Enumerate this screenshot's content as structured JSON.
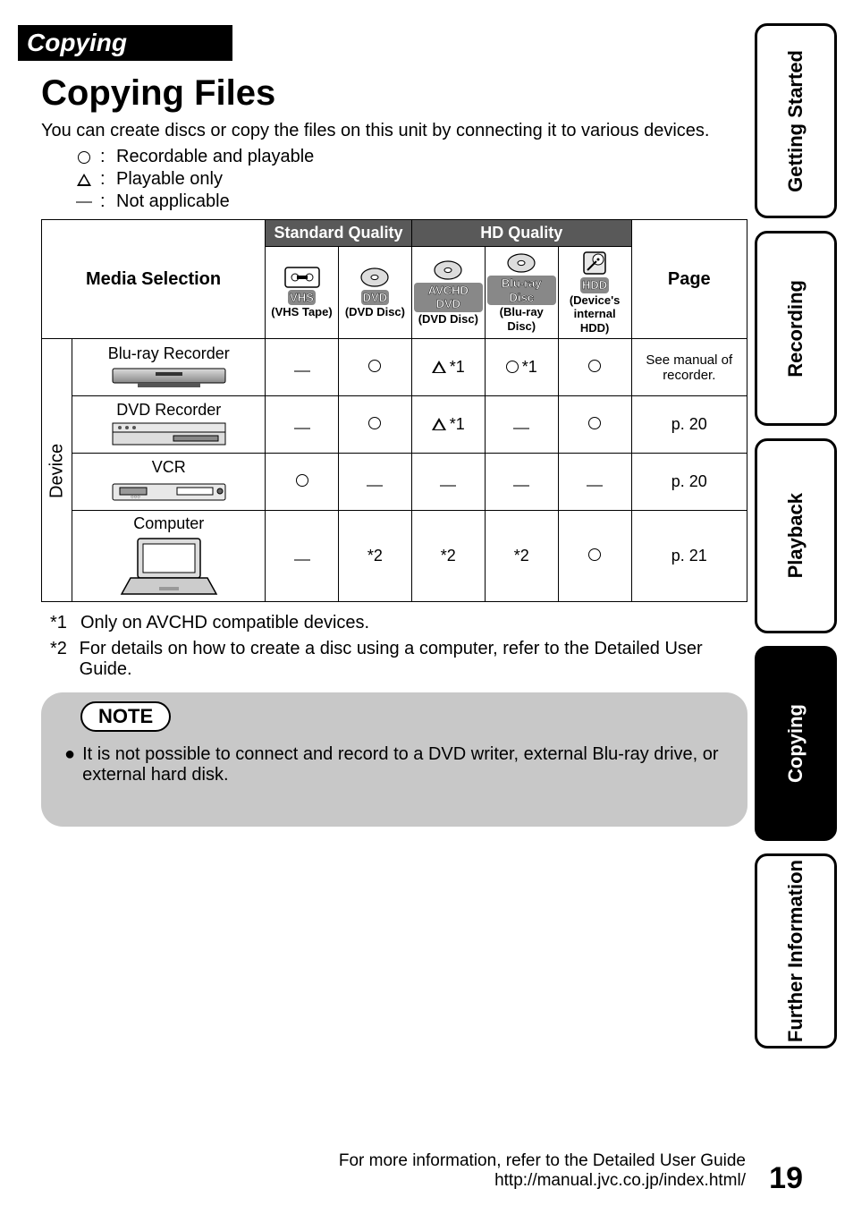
{
  "section": "Copying",
  "title": "Copying Files",
  "intro": "You can create discs or copy the files on this unit by connecting it to various devices.",
  "legend": [
    {
      "symbol": "circle",
      "text": "Recordable and playable"
    },
    {
      "symbol": "triangle",
      "text": "Playable only"
    },
    {
      "symbol": "dash",
      "text": "Not applicable"
    }
  ],
  "table": {
    "corner_label": "Media Selection",
    "quality_groups": [
      {
        "label": "Standard Quality",
        "span": 2
      },
      {
        "label": "HD Quality",
        "span": 3
      }
    ],
    "page_label": "Page",
    "media_columns": [
      {
        "badge": "VHS",
        "sub": "(VHS Tape)",
        "icon": "cassette"
      },
      {
        "badge": "DVD",
        "sub": "(DVD Disc)",
        "icon": "disc"
      },
      {
        "badge": "AVCHD DVD",
        "sub": "(DVD Disc)",
        "icon": "disc"
      },
      {
        "badge": "Blu-ray Disc",
        "sub": "(Blu-ray Disc)",
        "icon": "disc"
      },
      {
        "badge": "HDD",
        "sub": "(Device's internal HDD)",
        "icon": "hdd"
      }
    ],
    "device_label": "Device",
    "rows": [
      {
        "device": "Blu-ray Recorder",
        "device_icon": "bluray-recorder",
        "cells": [
          "—",
          "○",
          "△ *1",
          "○ *1",
          "○"
        ],
        "page": "See manual of recorder.",
        "page_small": true
      },
      {
        "device": "DVD Recorder",
        "device_icon": "dvd-recorder",
        "cells": [
          "—",
          "○",
          "△ *1",
          "—",
          "○"
        ],
        "page": "p. 20",
        "page_small": false
      },
      {
        "device": "VCR",
        "device_icon": "vcr",
        "cells": [
          "○",
          "—",
          "—",
          "—",
          "—"
        ],
        "page": "p. 20",
        "page_small": false
      },
      {
        "device": "Computer",
        "device_icon": "laptop",
        "cells": [
          "—",
          "*2",
          "*2",
          "*2",
          "○"
        ],
        "page": "p. 21",
        "page_small": false
      }
    ]
  },
  "footnotes": [
    {
      "num": "*1",
      "text": "Only on AVCHD compatible devices."
    },
    {
      "num": "*2",
      "text": "For details on how to create a disc using a computer, refer to the Detailed User Guide."
    }
  ],
  "note": {
    "label": "NOTE",
    "text": "It is not possible to connect and record to a DVD writer, external Blu-ray drive, or external hard disk."
  },
  "tabs": [
    {
      "label": "Getting Started",
      "active": false
    },
    {
      "label": "Recording",
      "active": false
    },
    {
      "label": "Playback",
      "active": false
    },
    {
      "label": "Copying",
      "active": true
    },
    {
      "label": "Further Information",
      "active": false
    }
  ],
  "footer": {
    "line1": "For more information, refer to the Detailed User Guide",
    "url": "http://manual.jvc.co.jp/index.html/",
    "page": "19"
  },
  "colors": {
    "header_bg": "#595959",
    "note_bg": "#c8c8c8"
  }
}
